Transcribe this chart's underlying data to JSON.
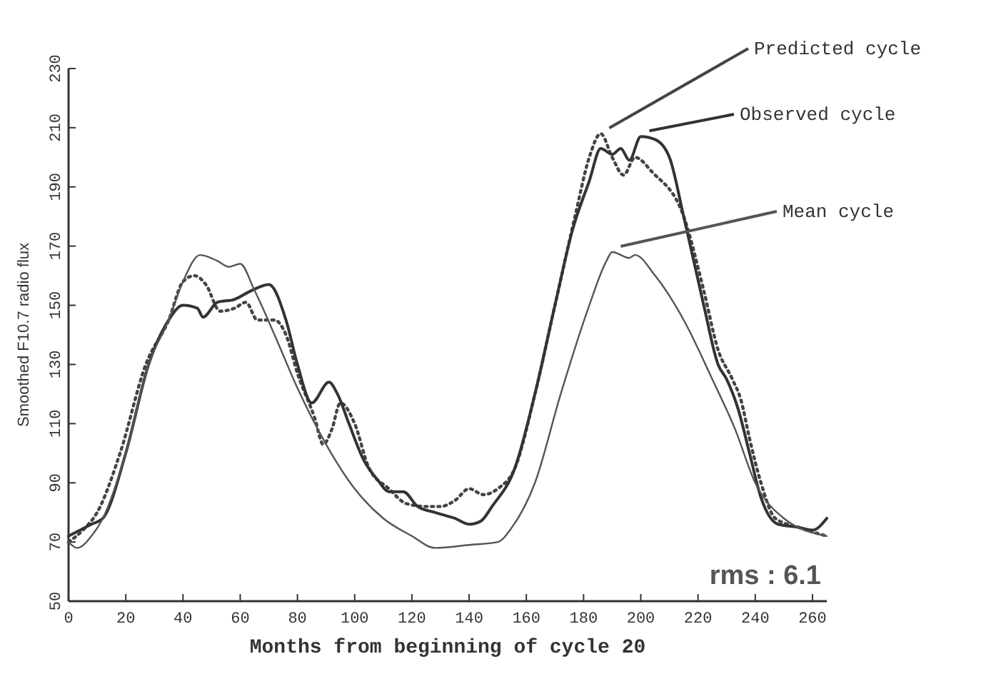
{
  "chart_data": {
    "type": "line",
    "xlabel": "Months from beginning of cycle 20",
    "ylabel": "Smoothed F10.7 radio flux",
    "xlim": [
      0,
      265
    ],
    "ylim": [
      50,
      230
    ],
    "xticks": [
      0,
      20,
      40,
      60,
      80,
      100,
      120,
      140,
      160,
      180,
      200,
      220,
      240,
      260
    ],
    "yticks": [
      50,
      70,
      90,
      110,
      130,
      150,
      170,
      190,
      210,
      230
    ],
    "grid": false,
    "legend": "top right",
    "annotations": [
      "rms : 6.1"
    ],
    "series": [
      {
        "name": "Predicted cycle",
        "color": "#444444",
        "line_style": "dotted",
        "x": [
          0,
          5,
          10,
          18,
          27,
          35,
          40,
          44,
          48,
          53,
          58,
          62,
          66,
          72,
          76,
          80,
          86,
          89,
          92,
          95,
          100,
          105,
          112,
          118,
          125,
          130,
          135,
          140,
          145,
          150,
          156,
          163,
          170,
          177,
          182,
          186,
          190,
          194,
          198,
          204,
          215,
          222,
          227,
          232,
          235,
          238,
          242,
          247,
          255,
          265
        ],
        "values": [
          70,
          74,
          80,
          100,
          130,
          145,
          158,
          160,
          157,
          148,
          149,
          151,
          145,
          145,
          140,
          127,
          112,
          103,
          108,
          117,
          110,
          95,
          88,
          83,
          82,
          82,
          84,
          88,
          86,
          88,
          95,
          120,
          150,
          180,
          200,
          208,
          200,
          194,
          200,
          195,
          180,
          155,
          135,
          125,
          118,
          105,
          90,
          78,
          75,
          72
        ]
      },
      {
        "name": "Observed cycle",
        "color": "#333333",
        "line_style": "solid",
        "x": [
          0,
          8,
          12,
          20,
          28,
          35,
          40,
          45,
          47,
          52,
          58,
          64,
          70,
          76,
          80,
          85,
          91,
          94,
          98,
          103,
          108,
          112,
          117,
          122,
          128,
          135,
          140,
          144,
          148,
          156,
          163,
          170,
          176,
          182,
          186,
          190,
          193,
          196,
          200,
          205,
          210,
          215,
          222,
          227,
          230,
          234,
          238,
          242,
          248,
          255,
          260,
          265
        ],
        "values": [
          72,
          76,
          78,
          100,
          130,
          145,
          150,
          149,
          146,
          151,
          152,
          155,
          157,
          145,
          130,
          117,
          124,
          120,
          110,
          98,
          91,
          87,
          87,
          82,
          80,
          78,
          76,
          77,
          82,
          95,
          120,
          150,
          175,
          192,
          203,
          201,
          203,
          199,
          207,
          206,
          200,
          180,
          150,
          130,
          125,
          115,
          100,
          85,
          76,
          75,
          74,
          78
        ]
      },
      {
        "name": "Mean cycle",
        "color": "#555555",
        "line_style": "solid",
        "x": [
          0,
          3,
          8,
          12,
          20,
          28,
          35,
          40,
          46,
          52,
          56,
          60,
          65,
          72,
          80,
          90,
          100,
          110,
          120,
          128,
          140,
          150,
          155,
          163,
          172,
          182,
          188,
          190,
          196,
          198,
          205,
          215,
          225,
          233,
          240,
          250,
          265
        ],
        "values": [
          70,
          68,
          72,
          78,
          100,
          130,
          145,
          158,
          167,
          165,
          163,
          164,
          155,
          140,
          122,
          103,
          88,
          78,
          72,
          68,
          69,
          70,
          75,
          90,
          120,
          150,
          165,
          168,
          166,
          167,
          160,
          145,
          125,
          108,
          90,
          78,
          72
        ]
      }
    ]
  }
}
